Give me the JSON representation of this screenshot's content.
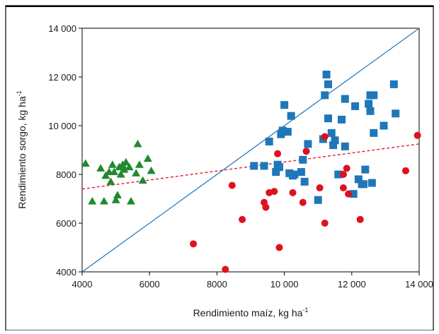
{
  "chart_data": {
    "type": "scatter",
    "title": "",
    "xlabel": "Rendimiento maíz, kg ha",
    "xlabel_sup": "-1",
    "ylabel": "Rendimiento sorgo, kg ha",
    "ylabel_sup": "-1",
    "xlim": [
      4000,
      14000
    ],
    "ylim": [
      4000,
      14000
    ],
    "x_ticks": [
      4000,
      6000,
      8000,
      10000,
      12000,
      14000
    ],
    "x_tick_labels": [
      "4000",
      "6000",
      "8000",
      "10 000",
      "12 000",
      "14 000"
    ],
    "y_ticks": [
      4000,
      6000,
      8000,
      10000,
      12000,
      14000
    ],
    "y_tick_labels": [
      "4000",
      "6000",
      "8000",
      "10 000",
      "12 000",
      "14 000"
    ],
    "grid": false,
    "colors": {
      "triangles": "#1f8a2e",
      "squares": "#1f77b8",
      "circles": "#e0101e",
      "identity_line": "#2a7cbd",
      "trend_line": "#e0101e"
    },
    "series": [
      {
        "marker": "triangle",
        "x": [
          4100,
          4300,
          4550,
          4650,
          4700,
          4800,
          4850,
          4900,
          4950,
          5000,
          5050,
          5100,
          5150,
          5200,
          5250,
          5300,
          5400,
          5450,
          5600,
          5650,
          5700,
          5800,
          5950,
          6050
        ],
        "y": [
          8450,
          6900,
          8250,
          6900,
          7950,
          8100,
          7700,
          8400,
          8100,
          6950,
          7150,
          8300,
          8000,
          8400,
          8200,
          8500,
          8300,
          6900,
          8050,
          9250,
          8400,
          7750,
          8650,
          8150
        ]
      },
      {
        "marker": "square",
        "x": [
          9100,
          9400,
          9550,
          9750,
          9800,
          9850,
          9900,
          9950,
          10000,
          10100,
          10150,
          10200,
          10250,
          10300,
          10500,
          10550,
          10600,
          10700,
          11000,
          11150,
          11200,
          11250,
          11300,
          11300,
          11400,
          11450,
          11500,
          11600,
          11700,
          11800,
          11800,
          12050,
          12100,
          12200,
          12300,
          12350,
          12400,
          12500,
          12550,
          12550,
          12600,
          12650,
          12650,
          12950,
          13250,
          13300
        ],
        "y": [
          8350,
          8350,
          9350,
          8100,
          8400,
          8300,
          9650,
          9800,
          10850,
          9750,
          8050,
          10400,
          7950,
          8000,
          8100,
          8600,
          7700,
          9250,
          6950,
          9450,
          11250,
          12100,
          11700,
          10300,
          9700,
          9200,
          9400,
          8000,
          10250,
          11100,
          9150,
          7200,
          10800,
          7800,
          7600,
          7600,
          8200,
          10900,
          10600,
          11250,
          7650,
          9700,
          11250,
          10000,
          11700,
          10500
        ]
      },
      {
        "marker": "circle",
        "x": [
          7300,
          8250,
          8450,
          8750,
          9400,
          9450,
          9550,
          9700,
          9800,
          9850,
          10250,
          10550,
          10650,
          11050,
          11200,
          11200,
          11750,
          11750,
          11850,
          11900,
          12250,
          13600,
          13950
        ],
        "y": [
          5150,
          4100,
          7550,
          6150,
          6850,
          6650,
          7250,
          7300,
          8850,
          5000,
          7250,
          6850,
          8950,
          7450,
          6000,
          9550,
          8000,
          7450,
          8250,
          7200,
          6150,
          8150,
          9600
        ]
      }
    ],
    "lines": [
      {
        "style": "solid",
        "x": [
          4000,
          14000
        ],
        "y": [
          4000,
          14000
        ]
      },
      {
        "style": "dashed",
        "x": [
          4000,
          14000
        ],
        "y": [
          7400,
          9250
        ]
      }
    ]
  }
}
